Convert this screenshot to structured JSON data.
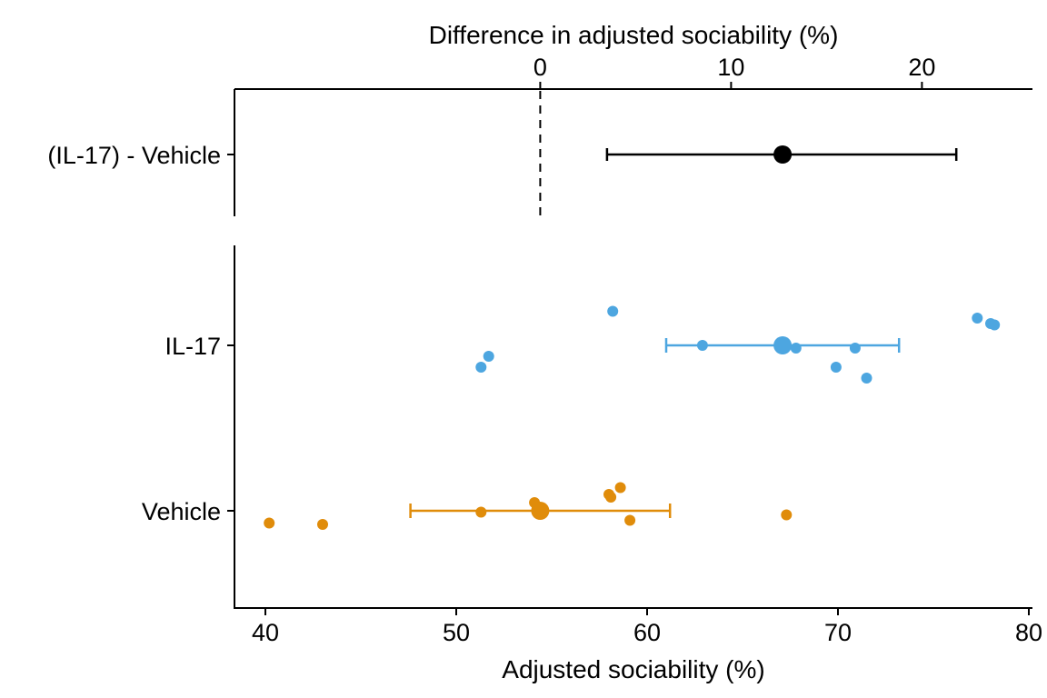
{
  "chart_data": [
    {
      "type": "scatter",
      "panel": "difference",
      "title": "",
      "xlabel": "Difference in adjusted sociability (%)",
      "ylabel": "",
      "xticks": [
        0,
        10,
        20
      ],
      "categories": [
        "(IL-17) - Vehicle"
      ],
      "reference_line": 0,
      "estimate": {
        "category": "(IL-17) - Vehicle",
        "mean": 12.7,
        "ci_low": 3.5,
        "ci_high": 21.8,
        "color": "#000000"
      }
    },
    {
      "type": "scatter",
      "panel": "groups",
      "title": "",
      "xlabel": "Adjusted sociability (%)",
      "ylabel": "",
      "xlim": [
        40,
        80
      ],
      "xticks": [
        40,
        50,
        60,
        70,
        80
      ],
      "categories": [
        "IL-17",
        "Vehicle"
      ],
      "series": [
        {
          "name": "IL-17",
          "color": "#4da6e0",
          "mean": 67.1,
          "ci_low": 61.0,
          "ci_high": 73.2,
          "points": [
            {
              "x": 58.2,
              "jitter": 0.25
            },
            {
              "x": 77.3,
              "jitter": 0.2
            },
            {
              "x": 78.0,
              "jitter": 0.16
            },
            {
              "x": 78.2,
              "jitter": 0.15
            },
            {
              "x": 51.7,
              "jitter": -0.08
            },
            {
              "x": 51.3,
              "jitter": -0.16
            },
            {
              "x": 62.9,
              "jitter": 0.0
            },
            {
              "x": 67.8,
              "jitter": -0.02
            },
            {
              "x": 70.9,
              "jitter": -0.02
            },
            {
              "x": 69.9,
              "jitter": -0.16
            },
            {
              "x": 71.5,
              "jitter": -0.24
            }
          ]
        },
        {
          "name": "Vehicle",
          "color": "#e08c0a",
          "mean": 54.4,
          "ci_low": 47.6,
          "ci_high": 61.2,
          "points": [
            {
              "x": 58.6,
              "jitter": 0.17
            },
            {
              "x": 58.0,
              "jitter": 0.12
            },
            {
              "x": 58.1,
              "jitter": 0.1
            },
            {
              "x": 54.1,
              "jitter": 0.06
            },
            {
              "x": 51.3,
              "jitter": -0.01
            },
            {
              "x": 67.3,
              "jitter": -0.03
            },
            {
              "x": 59.1,
              "jitter": -0.07
            },
            {
              "x": 40.2,
              "jitter": -0.09
            },
            {
              "x": 43.0,
              "jitter": -0.1
            }
          ]
        }
      ]
    }
  ]
}
